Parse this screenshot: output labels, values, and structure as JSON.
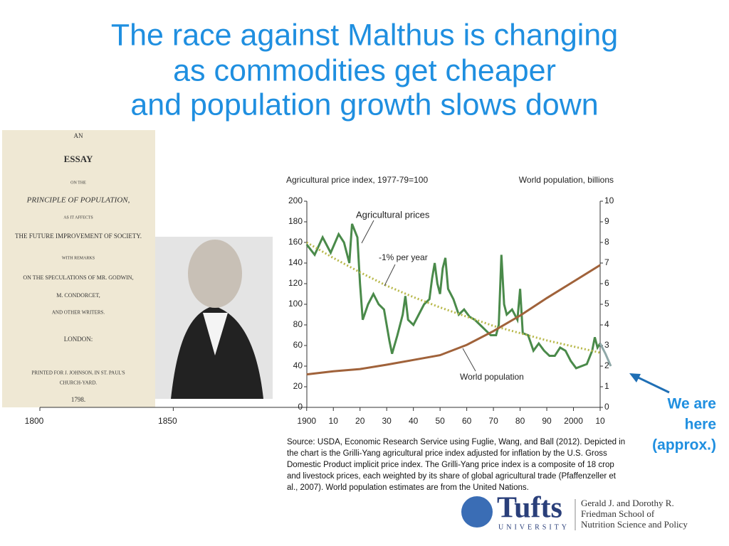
{
  "header": {
    "title_lines": [
      "The race against Malthus is changing",
      "as commodities get cheaper",
      "and population growth slows down"
    ]
  },
  "book": {
    "lines": [
      "AN",
      "ESSAY",
      "ON THE",
      "PRINCIPLE OF POPULATION,",
      "AS IT AFFECTS",
      "THE FUTURE IMPROVEMENT OF SOCIETY.",
      "WITH REMARKS",
      "ON THE SPECULATIONS OF MR. GODWIN,",
      "M. CONDORCET,",
      "AND OTHER WRITERS.",
      "LONDON:",
      "PRINTED FOR J. JOHNSON, IN ST. PAUL'S",
      "CHURCH-YARD.",
      "1798."
    ]
  },
  "chart_data": {
    "type": "line",
    "ylabel": "Agricultural price index, 1977-79=100",
    "y2label": "World population, billions",
    "annotations": [
      "Agricultural prices",
      "-1% per year",
      "World population",
      "We are",
      "here",
      "(approx.)"
    ],
    "xlim": [
      1800,
      2010
    ],
    "xticks": [
      1800,
      1850,
      1900,
      {
        "value": 1910,
        "label": "10"
      },
      {
        "value": 1920,
        "label": "20"
      },
      {
        "value": 1930,
        "label": "30"
      },
      {
        "value": 1940,
        "label": "40"
      },
      {
        "value": 1950,
        "label": "50"
      },
      {
        "value": 1960,
        "label": "60"
      },
      {
        "value": 1970,
        "label": "70"
      },
      {
        "value": 1980,
        "label": "80"
      },
      {
        "value": 1990,
        "label": "90"
      },
      2000,
      {
        "value": 2010,
        "label": "10"
      }
    ],
    "ylim": [
      0,
      200
    ],
    "yticks": [
      0,
      20,
      40,
      60,
      80,
      100,
      120,
      140,
      160,
      180,
      200
    ],
    "y2lim": [
      0,
      10
    ],
    "y2ticks": [
      0,
      1,
      2,
      3,
      4,
      5,
      6,
      7,
      8,
      9,
      10
    ],
    "series": [
      {
        "name": "Agricultural prices",
        "color": "#4a8a4a",
        "dash": false,
        "x": [
          1900,
          1903,
          1906,
          1909,
          1912,
          1914,
          1916,
          1917,
          1919,
          1920,
          1921,
          1923,
          1925,
          1927,
          1929,
          1931,
          1932,
          1934,
          1936,
          1937,
          1938,
          1940,
          1942,
          1944,
          1946,
          1947,
          1948,
          1949,
          1950,
          1951,
          1952,
          1953,
          1955,
          1957,
          1959,
          1961,
          1963,
          1965,
          1967,
          1969,
          1971,
          1972,
          1973,
          1974,
          1975,
          1977,
          1979,
          1980,
          1981,
          1983,
          1985,
          1987,
          1989,
          1991,
          1993,
          1995,
          1997,
          1999,
          2001,
          2003,
          2005,
          2007,
          2008,
          2009,
          2010
        ],
        "values": [
          158,
          148,
          165,
          150,
          168,
          160,
          140,
          178,
          165,
          120,
          85,
          100,
          110,
          100,
          95,
          65,
          52,
          70,
          90,
          108,
          85,
          80,
          90,
          100,
          105,
          125,
          140,
          120,
          110,
          135,
          145,
          115,
          105,
          90,
          95,
          88,
          85,
          80,
          75,
          70,
          70,
          80,
          148,
          100,
          90,
          95,
          85,
          115,
          72,
          70,
          55,
          62,
          55,
          50,
          50,
          58,
          55,
          45,
          38,
          40,
          42,
          55,
          68,
          58,
          62
        ]
      },
      {
        "name": "-1% per year",
        "color": "#b8b84a",
        "dash": true,
        "x": [
          1900,
          1910,
          1920,
          1930,
          1940,
          1950,
          1960,
          1970,
          1980,
          1990,
          2000,
          2010
        ],
        "values": [
          160,
          145,
          131,
          118,
          107,
          97,
          88,
          79,
          72,
          65,
          59,
          53
        ]
      },
      {
        "name": "World population",
        "color": "#a0623a",
        "dash": false,
        "axis": "y2",
        "x": [
          1900,
          1910,
          1920,
          1930,
          1940,
          1950,
          1960,
          1970,
          1980,
          1990,
          2000,
          2010
        ],
        "values": [
          1.6,
          1.75,
          1.86,
          2.07,
          2.3,
          2.53,
          3.03,
          3.7,
          4.45,
          5.3,
          6.1,
          6.9
        ]
      },
      {
        "color": "#8fa8a8",
        "dash": false,
        "x": [
          2010,
          2012,
          2014
        ],
        "values": [
          62,
          52,
          40
        ]
      }
    ],
    "source": [
      "Source: USDA, Economic Research Service using Fuglie, Wang, and Ball (2012). Depicted in",
      "the chart is the Grilli-Yang agricultural price index adjusted for inflation by the U.S. Gross",
      "Domestic Product implicit price index. The Grilli-Yang price index is a composite of 18 crop",
      "and livestock prices, each weighted by its share of global agricultural trade (Pfaffenzeller et",
      "al., 2007). World population estimates are from the United Nations."
    ]
  },
  "footer": {
    "logo": "Tufts",
    "university": "UNIVERSITY",
    "school": [
      "Gerald J. and Dorothy R.",
      "Friedman School of",
      "Nutrition Science and Policy"
    ]
  }
}
